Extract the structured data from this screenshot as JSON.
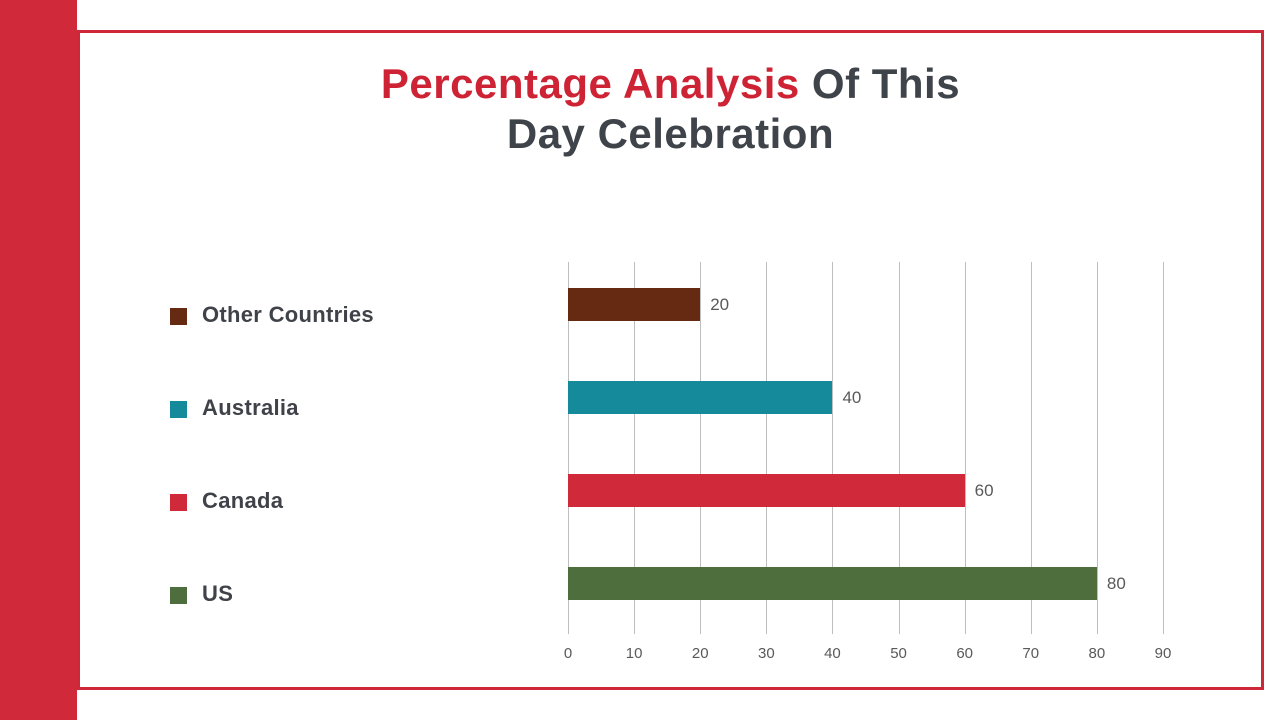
{
  "slide": {
    "title": {
      "accent": "Percentage Analysis",
      "rest_line1": "Of This",
      "line2": "Day Celebration"
    }
  },
  "colors": {
    "accent_red": "#D0293A",
    "frame_border": "#CE2737",
    "title_accent": "#CE2335",
    "title_dark": "#3F434A",
    "gridline": "#BEBEBE",
    "tick_text": "#595959",
    "value_text": "#595959"
  },
  "chart_data": {
    "type": "bar",
    "orientation": "horizontal",
    "title": "Percentage Analysis Of This Day Celebration",
    "categories": [
      "Other Countries",
      "Australia",
      "Canada",
      "US"
    ],
    "values": [
      20,
      40,
      60,
      80
    ],
    "data_labels": [
      "20",
      "40",
      "60",
      "80"
    ],
    "bar_colors": [
      "#662A13",
      "#148A9B",
      "#D0293A",
      "#4E6F3D"
    ],
    "xlim": [
      0,
      90
    ],
    "x_ticks": [
      0,
      10,
      20,
      30,
      40,
      50,
      60,
      70,
      80,
      90
    ],
    "grid": true,
    "legend_position": "left",
    "xlabel": "",
    "ylabel": ""
  }
}
